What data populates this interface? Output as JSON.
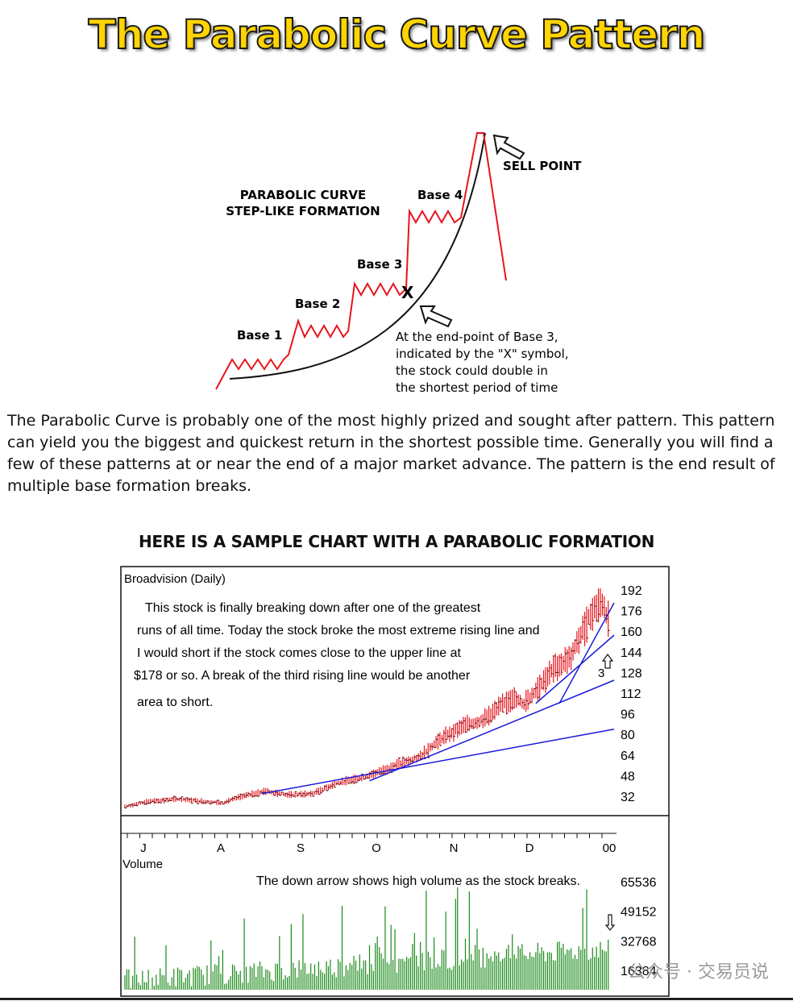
{
  "title": "The Parabolic Curve Pattern",
  "diagram": {
    "heading_line1": "PARABOLIC CURVE",
    "heading_line2": "STEP-LIKE FORMATION",
    "bases": [
      "Base 1",
      "Base 2",
      "Base 3",
      "Base 4"
    ],
    "sell_point": "SELL POINT",
    "x_mark": "X",
    "note_lines": [
      "At the end-point of Base 3,",
      "indicated by the \"X\" symbol,",
      "the stock could double in",
      "the shortest period of time"
    ],
    "colors": {
      "price": "#e8141c",
      "curve": "#111111"
    }
  },
  "paragraph": "The Parabolic Curve is probably one of the most highly prized and sought after pattern. This pattern can yield you the biggest and quickest return in the shortest possible time. Generally you will find a few of these patterns at or near the end of a major market advance. The pattern is the end result of multiple base formation breaks.",
  "subheading": "HERE IS A SAMPLE CHART WITH A PARABOLIC FORMATION",
  "watermark": "公众号 · 交易员说",
  "chart_data": {
    "type": "bar",
    "title": "Broadvision (Daily)",
    "annotation_lines": [
      "This stock is finally breaking down after one of the greatest",
      "runs of all time.  Today the stock broke the most extreme rising line and",
      "I would short if the stock comes close to the upper line at",
      "$178 or so.  A break of the third rising line would be another",
      "area to short."
    ],
    "month_labels": [
      "J",
      "A",
      "S",
      "O",
      "N",
      "D",
      "00"
    ],
    "price_ticks": [
      192,
      176,
      160,
      144,
      128,
      112,
      96,
      80,
      64,
      48,
      32
    ],
    "price_ylim": [
      20,
      195
    ],
    "arrow_label": "3",
    "colors": {
      "price_bars": "#e8141c",
      "trend_lines": "#1a1adc",
      "volume_bars": "#1a8a1a"
    },
    "price_anchors": [
      [
        0,
        24
      ],
      [
        12,
        28
      ],
      [
        28,
        30
      ],
      [
        40,
        28
      ],
      [
        50,
        27
      ],
      [
        60,
        32
      ],
      [
        72,
        36
      ],
      [
        84,
        33
      ],
      [
        96,
        34
      ],
      [
        108,
        42
      ],
      [
        120,
        46
      ],
      [
        132,
        52
      ],
      [
        140,
        57
      ],
      [
        150,
        62
      ],
      [
        160,
        75
      ],
      [
        172,
        86
      ],
      [
        184,
        92
      ],
      [
        192,
        102
      ],
      [
        198,
        108
      ],
      [
        204,
        104
      ],
      [
        212,
        118
      ],
      [
        220,
        132
      ],
      [
        228,
        140
      ],
      [
        235,
        164
      ],
      [
        240,
        178
      ],
      [
        244,
        182
      ],
      [
        247,
        170
      ]
    ],
    "trend_lines": [
      {
        "from": [
          70,
          34
        ],
        "to": [
          250,
          84
        ]
      },
      {
        "from": [
          125,
          44
        ],
        "to": [
          250,
          122
        ]
      },
      {
        "from": [
          210,
          104
        ],
        "to": [
          250,
          157
        ]
      },
      {
        "from": [
          222,
          104
        ],
        "to": [
          250,
          182
        ]
      }
    ],
    "volume": {
      "label": "Volume",
      "caption": "The down arrow shows high volume as the stock breaks.",
      "ticks": [
        65536,
        49152,
        32768,
        16384
      ],
      "ylim": [
        0,
        70000
      ]
    }
  }
}
